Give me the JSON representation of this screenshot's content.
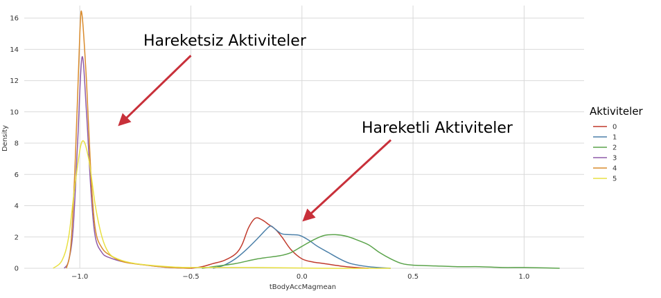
{
  "chart_data": {
    "type": "line",
    "xlabel": "tBodyAccMagmean",
    "ylabel": "Density",
    "xlim": [
      -1.25,
      1.27
    ],
    "ylim": [
      0,
      16.8
    ],
    "x_ticks": [
      -1.0,
      -0.5,
      0.0,
      0.5,
      1.0
    ],
    "x_tick_labels": [
      "−1.0",
      "−0.5",
      "0.0",
      "0.5",
      "1.0"
    ],
    "y_ticks": [
      0,
      2,
      4,
      6,
      8,
      10,
      12,
      14,
      16
    ],
    "y_tick_labels": [
      "0",
      "2",
      "4",
      "6",
      "8",
      "10",
      "12",
      "14",
      "16"
    ],
    "grid": true,
    "legend": {
      "title": "Aktiviteler",
      "placement": "right"
    },
    "series": [
      {
        "name": "0",
        "color": "#c0392b",
        "points": [
          [
            -0.5,
            0.0
          ],
          [
            -0.45,
            0.1
          ],
          [
            -0.4,
            0.3
          ],
          [
            -0.35,
            0.5
          ],
          [
            -0.3,
            0.9
          ],
          [
            -0.27,
            1.5
          ],
          [
            -0.24,
            2.6
          ],
          [
            -0.21,
            3.2
          ],
          [
            -0.18,
            3.1
          ],
          [
            -0.15,
            2.8
          ],
          [
            -0.12,
            2.5
          ],
          [
            -0.09,
            2.0
          ],
          [
            -0.05,
            1.2
          ],
          [
            0.0,
            0.6
          ],
          [
            0.05,
            0.4
          ],
          [
            0.1,
            0.3
          ],
          [
            0.2,
            0.1
          ],
          [
            0.3,
            0.0
          ]
        ]
      },
      {
        "name": "1",
        "color": "#4a7fa8",
        "points": [
          [
            -0.4,
            0.0
          ],
          [
            -0.35,
            0.2
          ],
          [
            -0.3,
            0.6
          ],
          [
            -0.25,
            1.2
          ],
          [
            -0.2,
            1.9
          ],
          [
            -0.16,
            2.5
          ],
          [
            -0.14,
            2.7
          ],
          [
            -0.12,
            2.5
          ],
          [
            -0.09,
            2.2
          ],
          [
            -0.05,
            2.15
          ],
          [
            -0.01,
            2.1
          ],
          [
            0.03,
            1.8
          ],
          [
            0.07,
            1.4
          ],
          [
            0.12,
            1.0
          ],
          [
            0.17,
            0.6
          ],
          [
            0.22,
            0.3
          ],
          [
            0.3,
            0.1
          ],
          [
            0.4,
            0.0
          ]
        ]
      },
      {
        "name": "2",
        "color": "#5aa34a",
        "points": [
          [
            -0.45,
            0.0
          ],
          [
            -0.4,
            0.1
          ],
          [
            -0.3,
            0.3
          ],
          [
            -0.2,
            0.6
          ],
          [
            -0.1,
            0.8
          ],
          [
            -0.05,
            1.0
          ],
          [
            0.0,
            1.4
          ],
          [
            0.05,
            1.8
          ],
          [
            0.1,
            2.1
          ],
          [
            0.15,
            2.15
          ],
          [
            0.2,
            2.05
          ],
          [
            0.25,
            1.8
          ],
          [
            0.3,
            1.5
          ],
          [
            0.35,
            1.0
          ],
          [
            0.4,
            0.6
          ],
          [
            0.45,
            0.3
          ],
          [
            0.5,
            0.2
          ],
          [
            0.6,
            0.15
          ],
          [
            0.7,
            0.1
          ],
          [
            0.8,
            0.1
          ],
          [
            0.9,
            0.05
          ],
          [
            1.0,
            0.05
          ],
          [
            1.1,
            0.02
          ],
          [
            1.16,
            0.0
          ]
        ]
      },
      {
        "name": "3",
        "color": "#8e5aa8",
        "points": [
          [
            -1.07,
            0.0
          ],
          [
            -1.05,
            0.5
          ],
          [
            -1.03,
            2.5
          ],
          [
            -1.01,
            8.0
          ],
          [
            -0.99,
            13.5
          ],
          [
            -0.97,
            10.0
          ],
          [
            -0.95,
            5.0
          ],
          [
            -0.93,
            2.0
          ],
          [
            -0.9,
            1.0
          ],
          [
            -0.87,
            0.7
          ],
          [
            -0.8,
            0.4
          ],
          [
            -0.7,
            0.2
          ],
          [
            -0.6,
            0.05
          ],
          [
            -0.5,
            0.0
          ]
        ]
      },
      {
        "name": "4",
        "color": "#d98a2b",
        "points": [
          [
            -1.06,
            0.0
          ],
          [
            -1.04,
            1.5
          ],
          [
            -1.02,
            7.0
          ],
          [
            -1.0,
            15.0
          ],
          [
            -0.99,
            16.2
          ],
          [
            -0.97,
            12.0
          ],
          [
            -0.95,
            6.0
          ],
          [
            -0.93,
            2.5
          ],
          [
            -0.9,
            1.3
          ],
          [
            -0.86,
            0.8
          ],
          [
            -0.8,
            0.4
          ],
          [
            -0.7,
            0.2
          ],
          [
            -0.6,
            0.05
          ],
          [
            -0.5,
            0.0
          ]
        ]
      },
      {
        "name": "5",
        "color": "#e8e042",
        "points": [
          [
            -1.12,
            0.0
          ],
          [
            -1.08,
            0.5
          ],
          [
            -1.05,
            2.0
          ],
          [
            -1.02,
            5.5
          ],
          [
            -0.99,
            8.1
          ],
          [
            -0.96,
            7.0
          ],
          [
            -0.93,
            4.0
          ],
          [
            -0.9,
            2.0
          ],
          [
            -0.87,
            1.0
          ],
          [
            -0.83,
            0.6
          ],
          [
            -0.75,
            0.3
          ],
          [
            -0.6,
            0.1
          ],
          [
            -0.5,
            0.05
          ],
          [
            -0.2,
            0.05
          ],
          [
            0.1,
            0.0
          ],
          [
            0.4,
            0.0
          ]
        ]
      }
    ],
    "annotations": [
      {
        "text": "Hareketsiz Aktiviteler",
        "arrow_from": [
          -0.5,
          13.6
        ],
        "arrow_to": [
          -0.82,
          9.2
        ]
      },
      {
        "text": "Hareketli Aktiviteler",
        "arrow_from": [
          0.4,
          8.2
        ],
        "arrow_to": [
          0.01,
          3.1
        ]
      }
    ]
  }
}
